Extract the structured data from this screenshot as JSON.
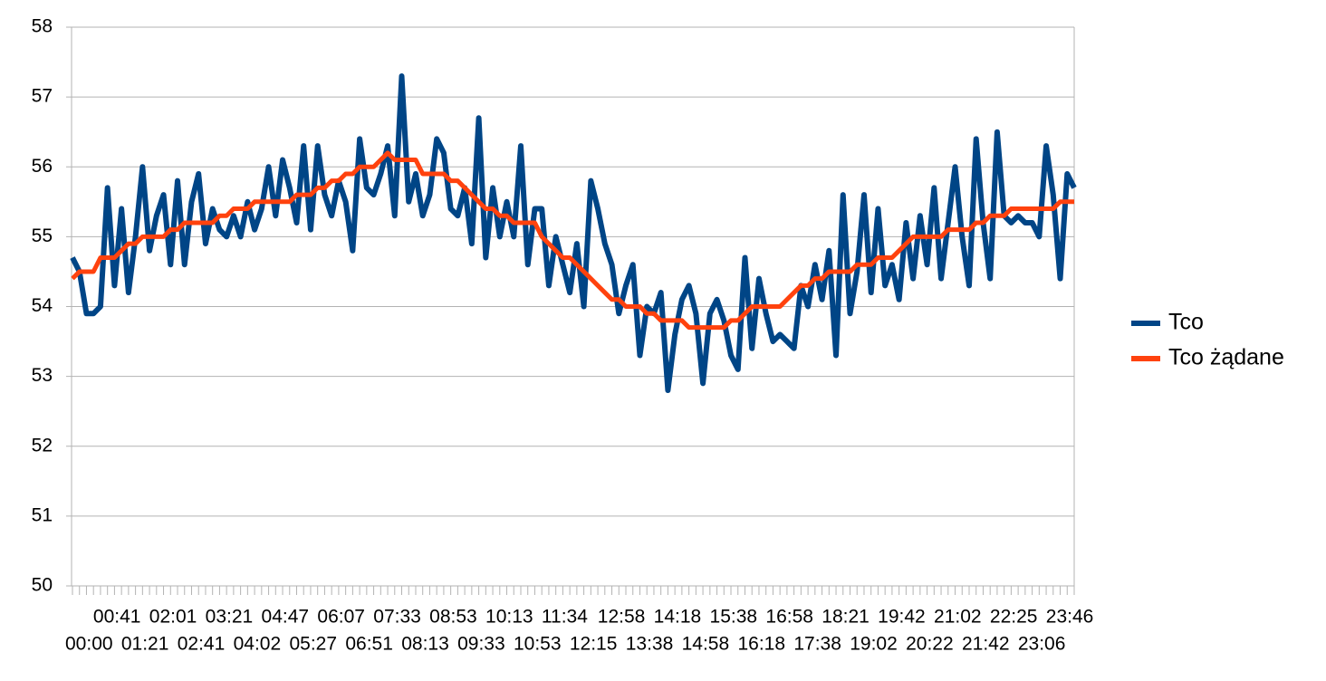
{
  "chart_data": {
    "type": "line",
    "categories": [
      "00:00",
      null,
      null,
      null,
      "00:41",
      null,
      null,
      null,
      "01:21",
      null,
      null,
      null,
      "02:01",
      null,
      null,
      null,
      "02:41",
      null,
      null,
      null,
      "03:21",
      null,
      null,
      null,
      "04:02",
      null,
      null,
      null,
      "04:47",
      null,
      null,
      null,
      "05:27",
      null,
      null,
      null,
      "06:07",
      null,
      null,
      null,
      "06:51",
      null,
      null,
      null,
      "07:33",
      null,
      null,
      null,
      "08:13",
      null,
      null,
      null,
      "08:53",
      null,
      null,
      null,
      "09:33",
      null,
      null,
      null,
      "10:13",
      null,
      null,
      null,
      "10:53",
      null,
      null,
      null,
      "11:34",
      null,
      null,
      null,
      "12:15",
      null,
      null,
      null,
      "12:58",
      null,
      null,
      null,
      "13:38",
      null,
      null,
      null,
      "14:18",
      null,
      null,
      null,
      "14:58",
      null,
      null,
      null,
      "15:38",
      null,
      null,
      null,
      "16:18",
      null,
      null,
      null,
      "16:58",
      null,
      null,
      null,
      "17:38",
      null,
      null,
      null,
      "18:21",
      null,
      null,
      null,
      "19:02",
      null,
      null,
      null,
      "19:42",
      null,
      null,
      null,
      "20:22",
      null,
      null,
      null,
      "21:02",
      null,
      null,
      null,
      "21:42",
      null,
      null,
      null,
      "22:25",
      null,
      null,
      null,
      "23:06",
      null,
      null,
      null,
      "23:46",
      null,
      null,
      null
    ],
    "series": [
      {
        "name": "Tco",
        "color": "#004586",
        "values": [
          54.7,
          54.5,
          53.9,
          53.9,
          54.0,
          55.7,
          54.3,
          55.4,
          54.2,
          55.0,
          56.0,
          54.8,
          55.3,
          55.6,
          54.6,
          55.8,
          54.6,
          55.5,
          55.9,
          54.9,
          55.4,
          55.1,
          55.0,
          55.3,
          55.0,
          55.5,
          55.1,
          55.4,
          56.0,
          55.3,
          56.1,
          55.7,
          55.2,
          56.3,
          55.1,
          56.3,
          55.6,
          55.3,
          55.8,
          55.5,
          54.8,
          56.4,
          55.7,
          55.6,
          55.9,
          56.3,
          55.3,
          57.3,
          55.5,
          55.9,
          55.3,
          55.6,
          56.4,
          56.2,
          55.4,
          55.3,
          55.7,
          54.9,
          56.7,
          54.7,
          55.7,
          55.0,
          55.5,
          55.0,
          56.3,
          54.6,
          55.4,
          55.4,
          54.3,
          55.0,
          54.6,
          54.2,
          54.9,
          54.0,
          55.8,
          55.4,
          54.9,
          54.6,
          53.9,
          54.3,
          54.6,
          53.3,
          54.0,
          53.9,
          54.2,
          52.8,
          53.6,
          54.1,
          54.3,
          53.9,
          52.9,
          53.9,
          54.1,
          53.8,
          53.3,
          53.1,
          54.7,
          53.4,
          54.4,
          53.9,
          53.5,
          53.6,
          53.5,
          53.4,
          54.3,
          54.0,
          54.6,
          54.1,
          54.8,
          53.3,
          55.6,
          53.9,
          54.5,
          55.6,
          54.2,
          55.4,
          54.3,
          54.6,
          54.1,
          55.2,
          54.4,
          55.3,
          54.6,
          55.7,
          54.4,
          55.2,
          56.0,
          55.0,
          54.3,
          56.4,
          55.2,
          54.4,
          56.5,
          55.3,
          55.2,
          55.3,
          55.2,
          55.2,
          55.0,
          56.3,
          55.6,
          54.4,
          55.9,
          55.7
        ]
      },
      {
        "name": "Tco żądane",
        "color": "#ff420e",
        "values": [
          54.4,
          54.5,
          54.5,
          54.5,
          54.7,
          54.7,
          54.7,
          54.8,
          54.9,
          54.9,
          55.0,
          55.0,
          55.0,
          55.0,
          55.1,
          55.1,
          55.2,
          55.2,
          55.2,
          55.2,
          55.2,
          55.3,
          55.3,
          55.4,
          55.4,
          55.4,
          55.5,
          55.5,
          55.5,
          55.5,
          55.5,
          55.5,
          55.6,
          55.6,
          55.6,
          55.7,
          55.7,
          55.8,
          55.8,
          55.9,
          55.9,
          56.0,
          56.0,
          56.0,
          56.1,
          56.2,
          56.1,
          56.1,
          56.1,
          56.1,
          55.9,
          55.9,
          55.9,
          55.9,
          55.8,
          55.8,
          55.7,
          55.6,
          55.5,
          55.4,
          55.4,
          55.3,
          55.3,
          55.2,
          55.2,
          55.2,
          55.2,
          55.0,
          54.9,
          54.8,
          54.7,
          54.7,
          54.6,
          54.5,
          54.4,
          54.3,
          54.2,
          54.1,
          54.1,
          54.0,
          54.0,
          54.0,
          53.9,
          53.9,
          53.8,
          53.8,
          53.8,
          53.8,
          53.7,
          53.7,
          53.7,
          53.7,
          53.7,
          53.7,
          53.8,
          53.8,
          53.9,
          54.0,
          54.0,
          54.0,
          54.0,
          54.0,
          54.1,
          54.2,
          54.3,
          54.3,
          54.4,
          54.4,
          54.5,
          54.5,
          54.5,
          54.5,
          54.6,
          54.6,
          54.6,
          54.7,
          54.7,
          54.7,
          54.8,
          54.9,
          55.0,
          55.0,
          55.0,
          55.0,
          55.0,
          55.1,
          55.1,
          55.1,
          55.1,
          55.2,
          55.2,
          55.3,
          55.3,
          55.3,
          55.4,
          55.4,
          55.4,
          55.4,
          55.4,
          55.4,
          55.4,
          55.5,
          55.5,
          55.5
        ]
      }
    ],
    "ylim": [
      50,
      58
    ],
    "yticks": [
      50,
      51,
      52,
      53,
      54,
      55,
      56,
      57,
      58
    ],
    "grid": true,
    "legend": "right"
  }
}
